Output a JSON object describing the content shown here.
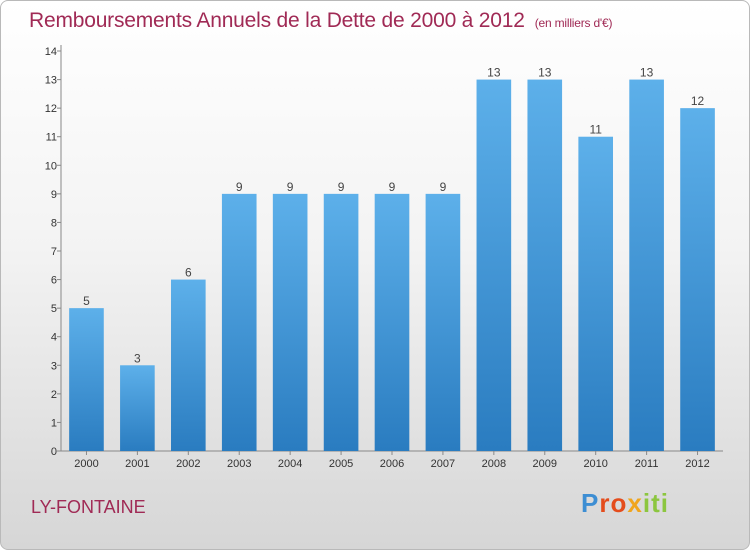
{
  "title": "Remboursements Annuels de la Dette de 2000 à 2012",
  "unit": "(en milliers d'€)",
  "town": "LY-FONTAINE",
  "logo": {
    "letters": [
      "P",
      "r",
      "o",
      "x",
      "i",
      "t",
      "i"
    ],
    "colors": [
      "#3d8ed3",
      "#e44c1c",
      "#e44c1c",
      "#f0a51d",
      "#8cc63f",
      "#8cc63f",
      "#8cc63f"
    ]
  },
  "colors": {
    "bar_light": "#5db0ea",
    "bar_dark": "#2a7cc0",
    "title": "#a02a55"
  },
  "chart_data": {
    "type": "bar",
    "categories": [
      "2000",
      "2001",
      "2002",
      "2003",
      "2004",
      "2005",
      "2006",
      "2007",
      "2008",
      "2009",
      "2010",
      "2011",
      "2012"
    ],
    "values": [
      5,
      3,
      6,
      9,
      9,
      9,
      9,
      9,
      13,
      13,
      11,
      13,
      12
    ],
    "yticks": [
      "0",
      "1",
      "2",
      "3",
      "4",
      "5",
      "6",
      "7",
      "8",
      "9",
      "10",
      "11",
      "12",
      "13",
      "14"
    ],
    "ylim": [
      0,
      14
    ],
    "grid": false
  }
}
